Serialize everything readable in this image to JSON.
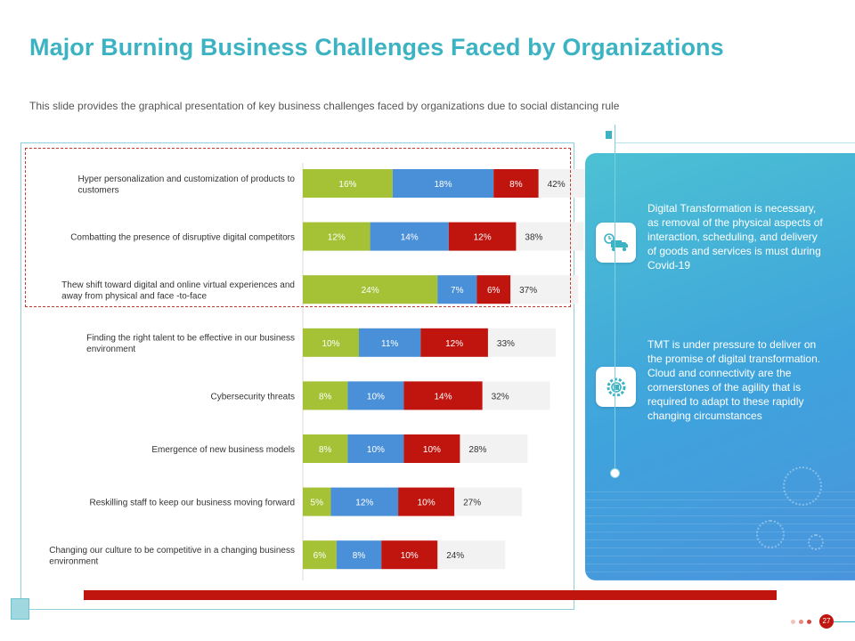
{
  "header": {
    "title": "Major Burning Business Challenges Faced by Organizations",
    "subtitle": "This slide provides  the graphical presentation  of key business challenges faced by organizations  due to social distancing rule"
  },
  "colors": {
    "accent": "#3bb3c3",
    "series_green": "#a5c236",
    "series_blue": "#4a90d9",
    "series_red": "#c0150e",
    "track": "#f2f2f2"
  },
  "chart_data": {
    "type": "bar",
    "orientation": "horizontal",
    "stacked": true,
    "categories": [
      [
        "Hyper personalization and customization of products to",
        "customers"
      ],
      [
        "Combatting the presence of disruptive digital competitors"
      ],
      [
        "Thew shift toward digital and online virtual experiences and",
        "away from physical and face -to-face"
      ],
      [
        "Finding the right talent to be effective in our business",
        "environment"
      ],
      [
        "Cybersecurity threats"
      ],
      [
        "Emergence of new business models"
      ],
      [
        "Reskilling staff to keep our business moving forward"
      ],
      [
        "Changing our culture to be competitive in a changing business",
        "environment"
      ]
    ],
    "series": [
      {
        "values": [
          16,
          12,
          24,
          10,
          8,
          8,
          5,
          6
        ],
        "labels": [
          "16%",
          "12%",
          "24%",
          "10%",
          "8%",
          "8%",
          "5%",
          "6%"
        ]
      },
      {
        "values": [
          18,
          14,
          7,
          11,
          10,
          10,
          12,
          8
        ],
        "labels": [
          "18%",
          "14%",
          "7%",
          "11%",
          "10%",
          "10%",
          "12%",
          "8%"
        ]
      },
      {
        "values": [
          8,
          12,
          6,
          12,
          14,
          10,
          10,
          10
        ],
        "labels": [
          "8%",
          "12%",
          "6%",
          "12%",
          "14%",
          "10%",
          "10%",
          "10%"
        ]
      }
    ],
    "totals": [
      42,
      38,
      37,
      33,
      32,
      28,
      27,
      24
    ],
    "total_labels": [
      "42%",
      "38%",
      "37%",
      "33%",
      "32%",
      "28%",
      "27%",
      "24%"
    ],
    "xlim": [
      0,
      42
    ],
    "grid": false
  },
  "panel": {
    "item1_text": "Digital Transformation  is necessary, as removal  of the physical aspects of interaction, scheduling, and delivery  of goods and services is must during Covid-19",
    "item1_icon": "delivery-truck-clock-icon",
    "item2_text": "TMT is under pressure to deliver on the promise of digital transformation. Cloud and connectivity are the cornerstones of the agility that is required to adapt to these rapidly changing circumstances",
    "item2_icon": "digital-gear-icon"
  },
  "footer": {
    "page_number": "27"
  }
}
